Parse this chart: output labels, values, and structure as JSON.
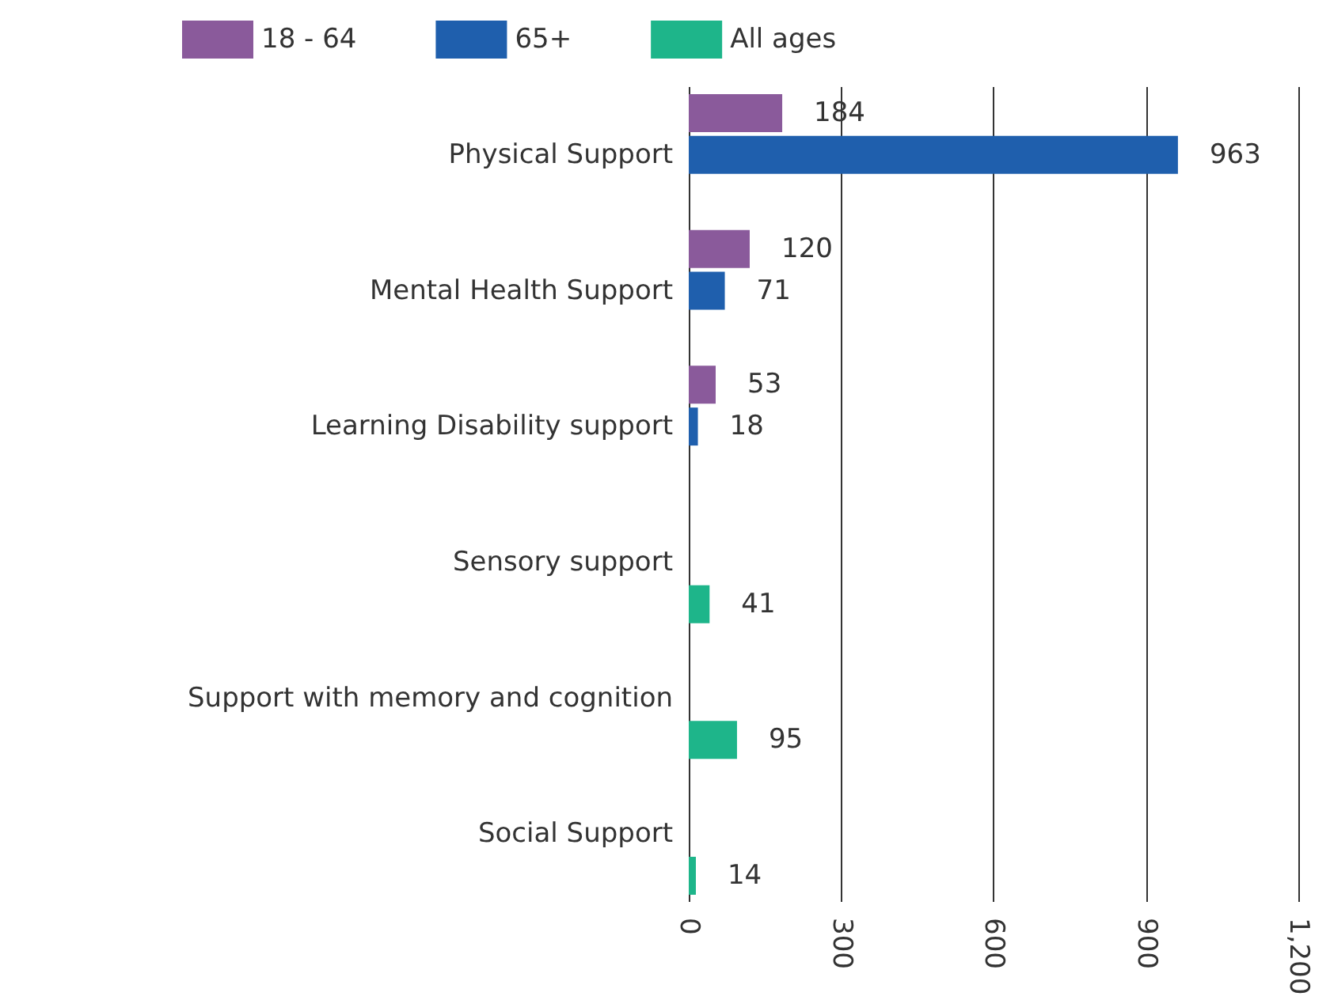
{
  "chart_data": {
    "type": "bar",
    "orientation": "horizontal",
    "categories": [
      "Physical Support",
      "Mental Health Support",
      "Learning Disability support",
      "Sensory support",
      "Support with memory and cognition",
      "Social Support"
    ],
    "series": [
      {
        "name": "18 - 64",
        "color": "#8a5a9b",
        "values": [
          184,
          120,
          53,
          null,
          null,
          null
        ]
      },
      {
        "name": "65+",
        "color": "#1f5fad",
        "values": [
          963,
          71,
          18,
          null,
          null,
          null
        ]
      },
      {
        "name": "All ages",
        "color": "#1eb58a",
        "values": [
          null,
          null,
          null,
          41,
          95,
          14
        ]
      }
    ],
    "xlim": [
      0,
      1200
    ],
    "xticks": [
      0,
      300,
      600,
      900,
      {
        "value": 1200,
        "label": "1,200"
      }
    ],
    "grid": "x",
    "legend": "top left",
    "data_labels": true
  }
}
